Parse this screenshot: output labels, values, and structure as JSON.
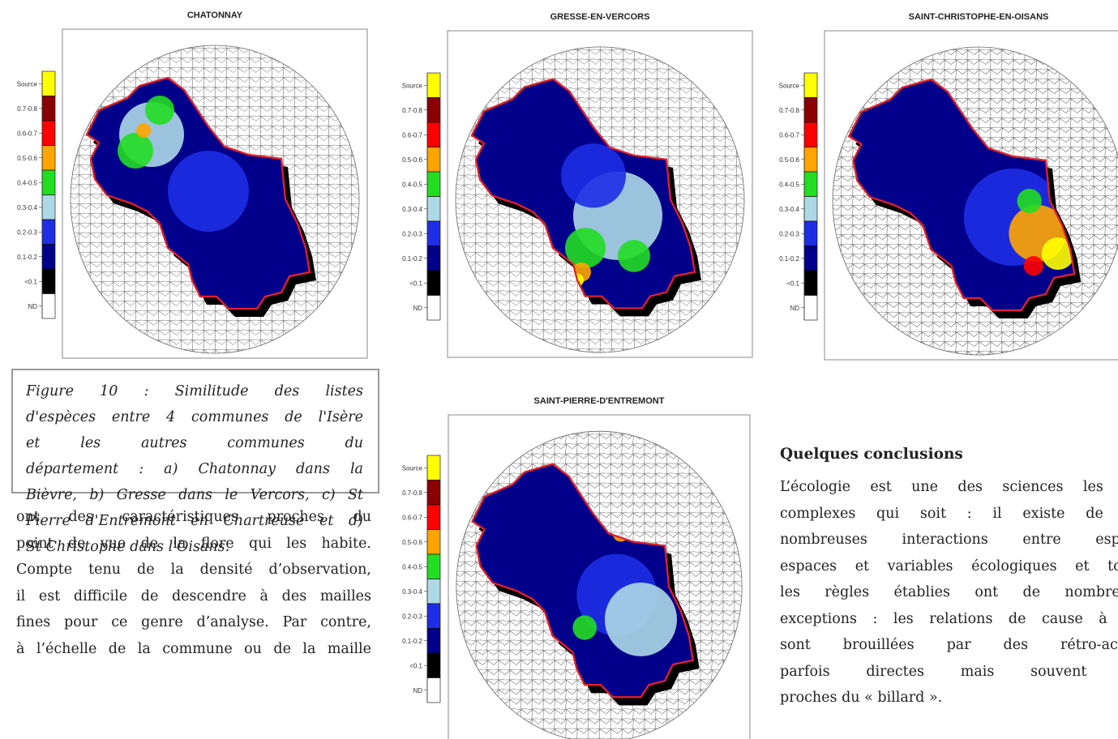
{
  "maps": [
    {
      "title": "CHATONNAY"
    },
    {
      "title": "GRESSE-EN-VERCORS"
    },
    {
      "title": "SAINT-CHRISTOPHE-EN-OISANS"
    },
    {
      "title": "SAINT-PIERRE-D'ENTREMONT"
    }
  ],
  "legend": {
    "labels": [
      "Source",
      "0.7-0.8",
      "0.6-0.7",
      "0.5-0.6",
      "0.4-0.5",
      "0.3-0.4",
      "0.2-0.3",
      "0.1-0.2",
      "<0.1",
      "ND"
    ],
    "colors": [
      "#ffff00",
      "#8b0000",
      "#ff0000",
      "#ffa500",
      "#22dd22",
      "#add8e6",
      "#1e2ee6",
      "#00008b",
      "#000000",
      "#ffffff"
    ]
  },
  "caption": {
    "lines": [
      "Figure 10 : Similitude des listes",
      "d'espèces entre 4 communes de l'Isère",
      "et les autres communes du",
      "département : a) Chatonnay dans la",
      "Bièvre, b) Gresse dans le Vercors, c) St",
      "Pierre d'Entremont en Chartreuse et d)",
      "St Christophe dans l'Oisans."
    ]
  },
  "body_left": {
    "lines": [
      "ont des caractéristiques proches du",
      "point de vue de la flore qui les habite.",
      "Compte tenu de la densité d’observation,",
      "il est difficile de descendre à des mailles",
      "fines pour ce genre d’analyse. Par contre,",
      "à l’échelle de la commune ou de la maille"
    ]
  },
  "conclusions": {
    "heading": "Quelques conclusions",
    "lines": [
      "L’écologie est une des sciences les pl",
      "complexes qui soit : il existe de tr",
      "nombreuses interactions entre espèc",
      "espaces et variables écologiques et tout",
      "les règles établies ont de nombreus",
      "exceptions : les relations de cause à ef",
      "sont brouillées par des rétro-actio",
      "parfois directes mais souvent pl",
      "proches du « billard »."
    ]
  }
}
